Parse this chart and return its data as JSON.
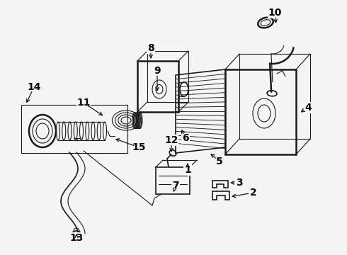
{
  "bg_color": "#f5f5f5",
  "line_color": "#1a1a1a",
  "label_color": "#000000",
  "figsize": [
    4.9,
    3.6
  ],
  "dpi": 100
}
